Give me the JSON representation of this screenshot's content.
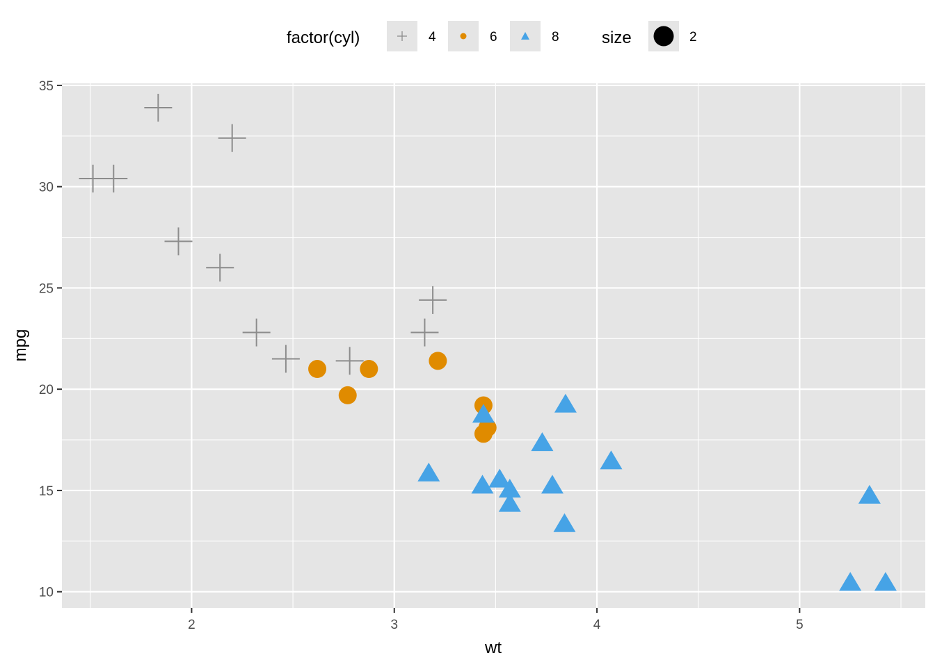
{
  "chart_data": {
    "type": "scatter",
    "title": "",
    "xlabel": "wt",
    "ylabel": "mpg",
    "xlim": [
      1.36,
      5.62
    ],
    "ylim": [
      9.2,
      35.1
    ],
    "xticks": [
      2,
      3,
      4,
      5
    ],
    "yticks": [
      10,
      15,
      20,
      25,
      30,
      35
    ],
    "grid": true,
    "legend_position": "top",
    "legend": {
      "shape_title": "factor(cyl)",
      "shape_entries": [
        {
          "label": "4",
          "shape": "plus",
          "color": "#8c8c8c"
        },
        {
          "label": "6",
          "shape": "circle",
          "color": "#e08b00"
        },
        {
          "label": "8",
          "shape": "triangle",
          "color": "#46a3e6"
        }
      ],
      "size_title": "size",
      "size_entries": [
        {
          "label": "2",
          "shape": "circle",
          "color": "#000000"
        }
      ]
    },
    "series": [
      {
        "name": "4",
        "shape": "plus",
        "color": "#8c8c8c",
        "points": [
          [
            2.32,
            22.8
          ],
          [
            3.19,
            24.4
          ],
          [
            3.15,
            22.8
          ],
          [
            2.2,
            32.4
          ],
          [
            1.615,
            30.4
          ],
          [
            1.835,
            33.9
          ],
          [
            2.465,
            21.5
          ],
          [
            1.935,
            27.3
          ],
          [
            2.14,
            26.0
          ],
          [
            1.513,
            30.4
          ],
          [
            2.78,
            21.4
          ]
        ]
      },
      {
        "name": "6",
        "shape": "circle",
        "color": "#e08b00",
        "points": [
          [
            2.62,
            21.0
          ],
          [
            2.875,
            21.0
          ],
          [
            3.215,
            21.4
          ],
          [
            3.46,
            18.1
          ],
          [
            3.44,
            19.2
          ],
          [
            3.44,
            17.8
          ],
          [
            2.77,
            19.7
          ]
        ]
      },
      {
        "name": "8",
        "shape": "triangle",
        "color": "#46a3e6",
        "points": [
          [
            3.44,
            18.7
          ],
          [
            3.57,
            14.3
          ],
          [
            4.07,
            16.4
          ],
          [
            3.73,
            17.3
          ],
          [
            3.78,
            15.2
          ],
          [
            5.25,
            10.4
          ],
          [
            5.424,
            10.4
          ],
          [
            5.345,
            14.7
          ],
          [
            3.52,
            15.5
          ],
          [
            3.435,
            15.2
          ],
          [
            3.84,
            13.3
          ],
          [
            3.845,
            19.2
          ],
          [
            3.17,
            15.8
          ],
          [
            3.57,
            15.0
          ]
        ]
      }
    ]
  }
}
